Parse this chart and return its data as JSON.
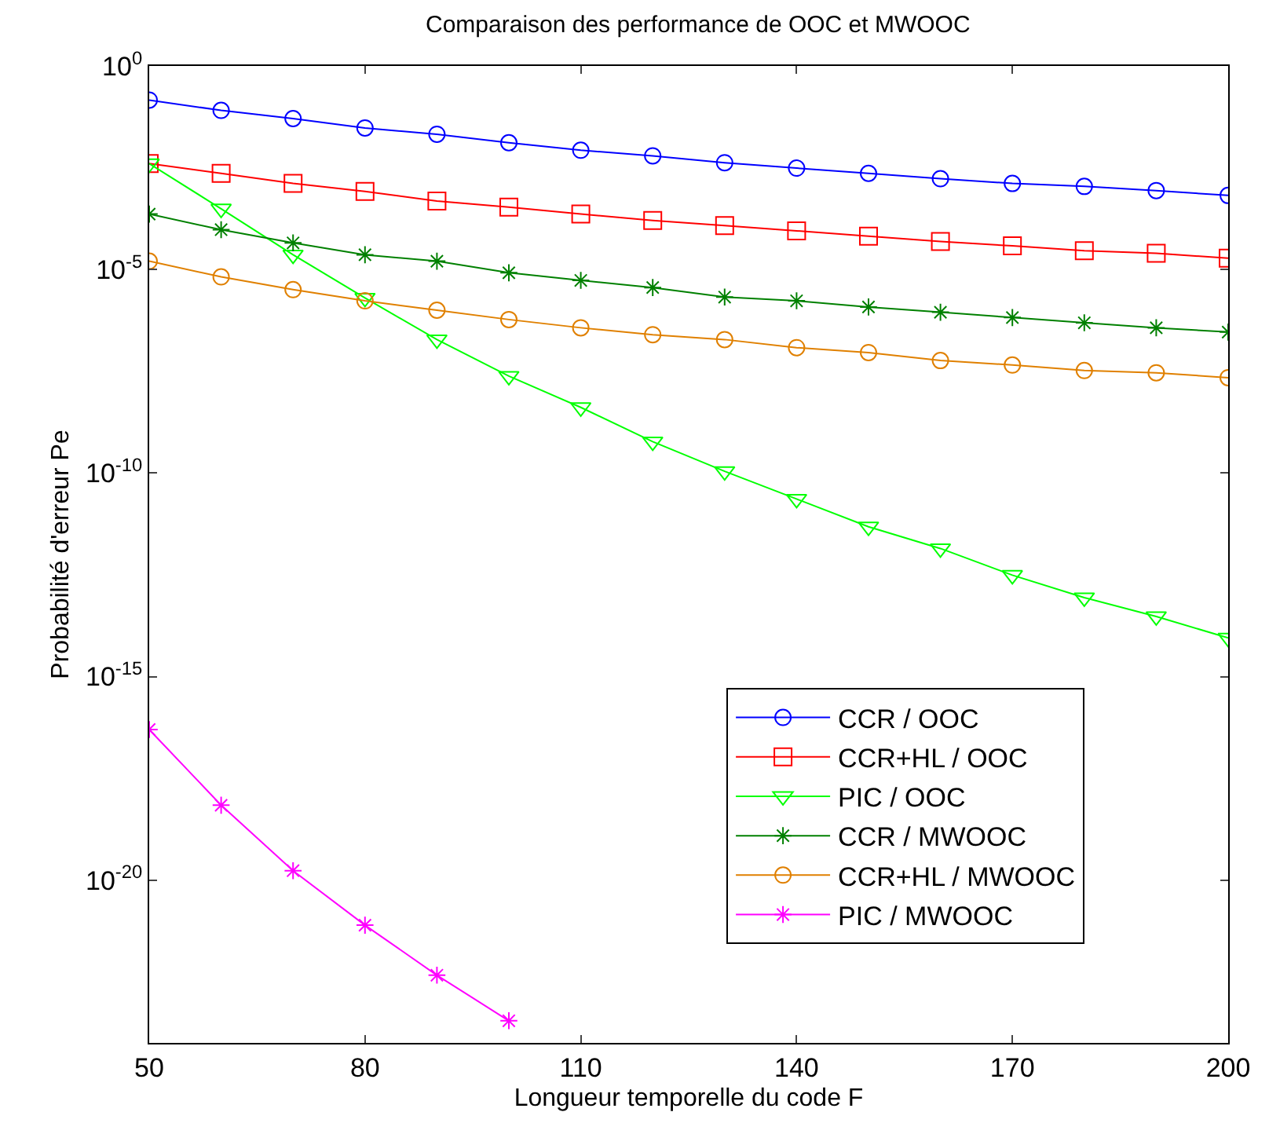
{
  "chart_data": {
    "type": "line",
    "title": "Comparaison des performance de OOC et MWOOC",
    "xlabel": "Longueur temporelle du code F",
    "ylabel": "Probabilité d'erreur Pe",
    "x": [
      50,
      60,
      70,
      80,
      90,
      100,
      110,
      120,
      130,
      140,
      150,
      160,
      170,
      180,
      190,
      200
    ],
    "series": [
      {
        "name": "CCR / OOC",
        "color": "#0000ff",
        "marker": "circle",
        "values": [
          0.145,
          0.081,
          0.051,
          0.03,
          0.021,
          0.013,
          0.0085,
          0.0062,
          0.0042,
          0.0031,
          0.0023,
          0.0017,
          0.0013,
          0.0011,
          0.00087,
          0.00066
        ]
      },
      {
        "name": "CCR+HL / OOC",
        "color": "#ff0000",
        "marker": "square",
        "values": [
          0.004,
          0.0023,
          0.0013,
          0.00083,
          0.00048,
          0.00034,
          0.00023,
          0.00016,
          0.00012,
          8.9e-05,
          6.6e-05,
          4.9e-05,
          3.8e-05,
          2.9e-05,
          2.5e-05,
          1.9e-05
        ]
      },
      {
        "name": "PIC / OOC",
        "color": "#00ff00",
        "marker": "triangle",
        "values": [
          0.004,
          0.00031,
          2.3e-05,
          2e-06,
          1.9e-07,
          2.4e-08,
          4.1e-09,
          5.9e-10,
          1.1e-10,
          2.3e-11,
          4.8e-12,
          1.4e-12,
          3.1e-13,
          8.7e-14,
          3e-14,
          8.9e-15
        ]
      },
      {
        "name": "CCR / MWOOC",
        "color": "#008000",
        "marker": "cross",
        "values": [
          0.00023,
          9.5e-05,
          4.5e-05,
          2.3e-05,
          1.6e-05,
          8.3e-06,
          5.4e-06,
          3.6e-06,
          2.1e-06,
          1.7e-06,
          1.2e-06,
          8.9e-07,
          6.6e-07,
          4.9e-07,
          3.7e-07,
          2.9e-07
        ]
      },
      {
        "name": "CCR+HL / MWOOC",
        "color": "#e08000",
        "marker": "circle",
        "values": [
          1.6e-05,
          6.6e-06,
          3.2e-06,
          1.7e-06,
          1e-06,
          5.9e-07,
          3.7e-07,
          2.5e-07,
          1.9e-07,
          1.2e-07,
          9.1e-08,
          5.8e-08,
          4.5e-08,
          3.3e-08,
          2.9e-08,
          2.2e-08
        ]
      },
      {
        "name": "PIC / MWOOC",
        "color": "#ff00ff",
        "marker": "cross",
        "x": [
          50,
          60,
          70,
          80,
          90,
          100
        ],
        "values": [
          5e-17,
          6.9e-19,
          1.7e-20,
          7.8e-22,
          4.6e-23,
          3.5e-24
        ]
      }
    ],
    "log": "y",
    "xlim": [
      50,
      200
    ],
    "xticks": [
      50,
      80,
      110,
      140,
      170,
      200
    ],
    "ylim": [
      1e-24,
      1
    ],
    "yticks": [
      {
        "value": 1,
        "label": "10$^{0}$"
      },
      {
        "value": 1e-05,
        "label": "10$^{-5}$"
      },
      {
        "value": 1e-10,
        "label": "10$^{-10}$"
      },
      {
        "value": 1e-15,
        "label": "10$^{-15}$"
      },
      {
        "value": 1e-20,
        "label": "10$^{-20}$"
      }
    ],
    "legend": "bottom right",
    "line_style": "solid"
  }
}
